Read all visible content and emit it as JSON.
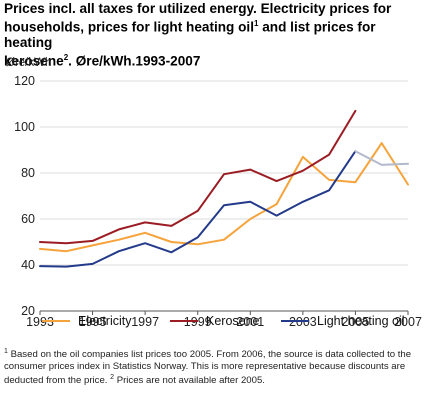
{
  "title_line1": "Prices incl. all taxes for utilized energy. Electricity prices for",
  "title_line2": "households, prices for light heating oil",
  "title_sup1": "1",
  "title_line2b": " and list prices for heating",
  "title_line3": "kerosene",
  "title_sup2": "2",
  "title_line3b": ". Øre/kWh.1993-2007",
  "footnote_sup1": "1",
  "footnote1": " Based on the oil companies list prices too 2005. From 2006, the source is data collected to the consumer prices index in Statistics Norway. This is more representative because discounts are deducted from the price. ",
  "footnote_sup2": "2",
  "footnote2": " Prices are not available after 2005.",
  "chart_data": {
    "type": "line",
    "ylabel": "Øre/kWh",
    "ylim": [
      20,
      120
    ],
    "yticks": [
      20,
      40,
      60,
      80,
      100,
      120
    ],
    "xlim": [
      1993,
      2007
    ],
    "xticks": [
      1993,
      1995,
      1997,
      1999,
      2001,
      2003,
      2005,
      2007
    ],
    "grid": true,
    "legend_position": "bottom",
    "series": [
      {
        "name": "Electricity",
        "color": "#f5a33b",
        "x": [
          1993,
          1994,
          1995,
          1996,
          1997,
          1998,
          1999,
          2000,
          2001,
          2002,
          2003,
          2004,
          2005,
          2006,
          2007
        ],
        "y": [
          47,
          46,
          48.5,
          51,
          54,
          50,
          49,
          51,
          60,
          66.5,
          87,
          77,
          76,
          93,
          75
        ]
      },
      {
        "name": "Kerosene",
        "color": "#9b1c23",
        "x": [
          1993,
          1994,
          1995,
          1996,
          1997,
          1998,
          1999,
          2000,
          2001,
          2002,
          2003,
          2004,
          2005
        ],
        "y": [
          50,
          49.5,
          50.5,
          55.5,
          58.5,
          57,
          63.5,
          79.5,
          81.5,
          76.5,
          81,
          88,
          107
        ]
      },
      {
        "name": "Light heating oil",
        "color": "#243a8a",
        "x": [
          1993,
          1994,
          1995,
          1996,
          1997,
          1998,
          1999,
          2000,
          2001,
          2002,
          2003,
          2004,
          2005
        ],
        "y": [
          39.5,
          39.3,
          40.5,
          46,
          49.5,
          45.5,
          52,
          66,
          67.5,
          61.5,
          67.5,
          72.5,
          89.5
        ]
      },
      {
        "color": "#b3b9cc",
        "x": [
          2005,
          2006,
          2007
        ],
        "y": [
          89.5,
          83.5,
          84
        ]
      }
    ]
  }
}
